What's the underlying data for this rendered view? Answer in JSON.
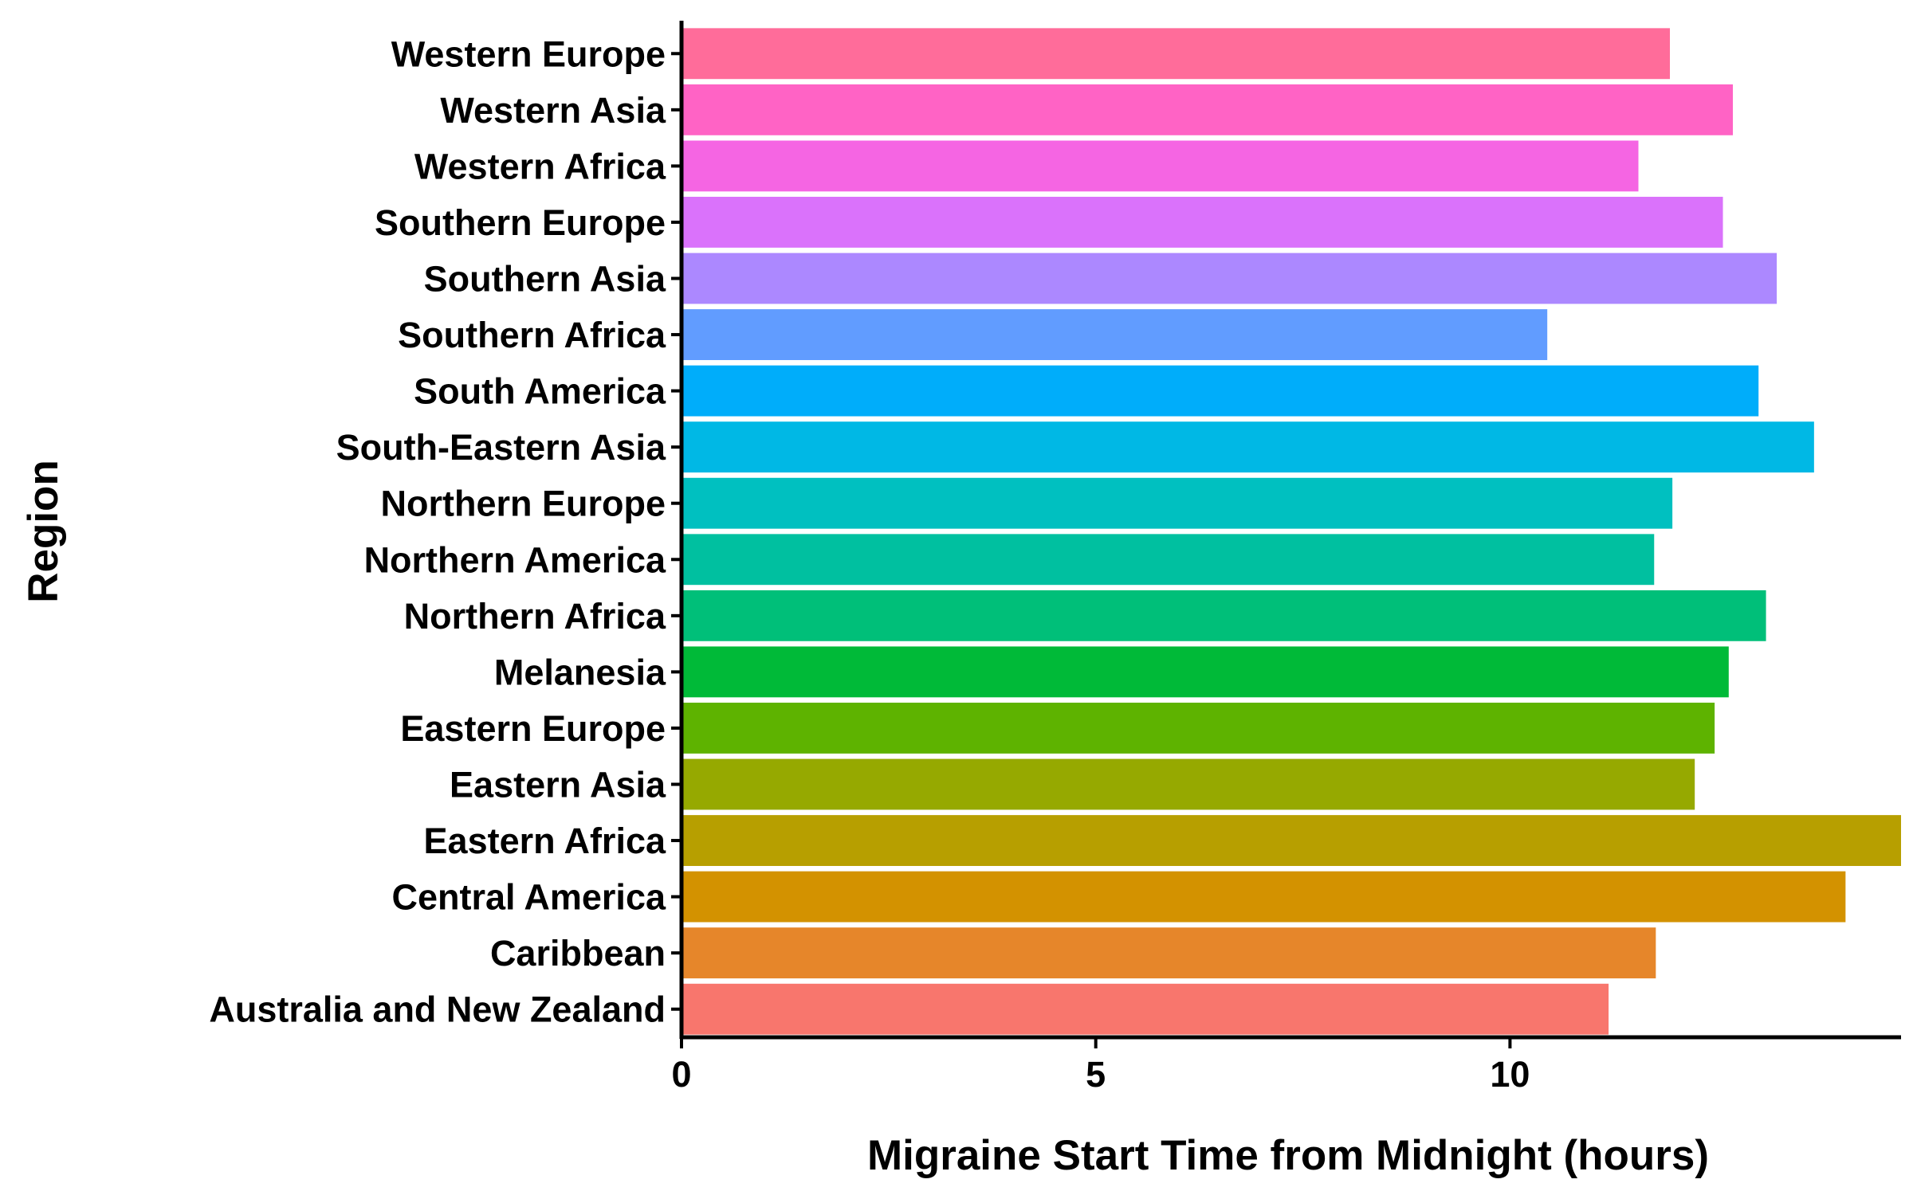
{
  "chart_data": {
    "type": "bar",
    "orientation": "horizontal",
    "title": "",
    "xlabel": "Migraine Start Time from Midnight (hours)",
    "ylabel": "Region",
    "xlim": [
      0,
      14.72
    ],
    "xticks": [
      0,
      5,
      10
    ],
    "grid": false,
    "categories": [
      "Western Europe",
      "Western Asia",
      "Western Africa",
      "Southern Europe",
      "Southern Asia",
      "Southern Africa",
      "South America",
      "South-Eastern Asia",
      "Northern Europe",
      "Northern America",
      "Northern Africa",
      "Melanesia",
      "Eastern Europe",
      "Eastern Asia",
      "Eastern Africa",
      "Central America",
      "Caribbean",
      "Australia and New Zealand"
    ],
    "values": [
      11.93,
      12.69,
      11.55,
      12.57,
      13.22,
      10.45,
      13.0,
      13.67,
      11.96,
      11.74,
      13.09,
      12.64,
      12.47,
      12.23,
      14.72,
      14.05,
      11.76,
      11.19
    ],
    "colors": [
      "#FF6C9A",
      "#FF63C5",
      "#F565E3",
      "#DA72FB",
      "#AC88FF",
      "#619CFF",
      "#00ADFA",
      "#00B8E5",
      "#00C0C0",
      "#00C0A0",
      "#00BF79",
      "#00BA38",
      "#5EB300",
      "#96A900",
      "#B79F00",
      "#D39200",
      "#E6862A",
      "#F8766D"
    ]
  }
}
